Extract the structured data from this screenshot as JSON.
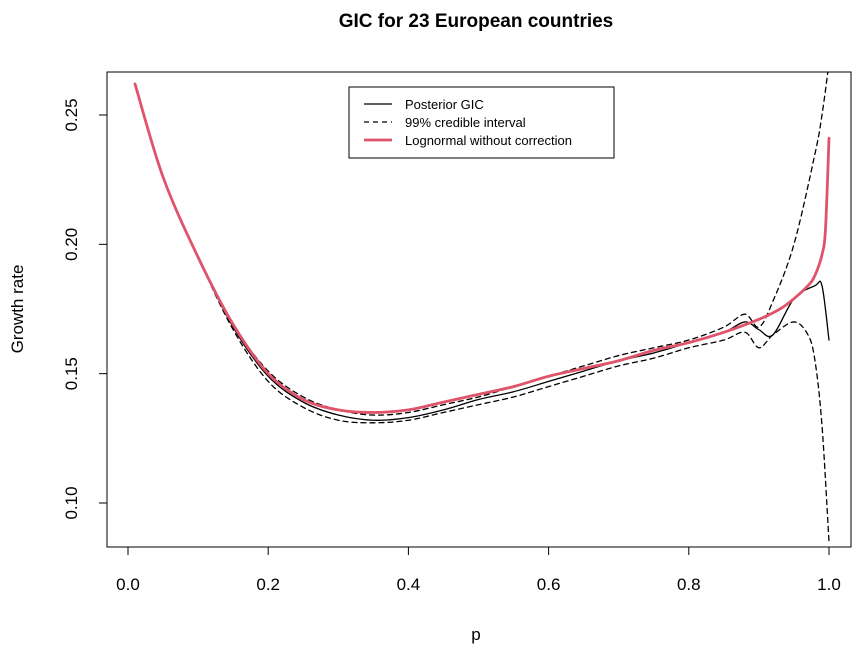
{
  "chart_data": {
    "type": "line",
    "title": "GIC for 23 European countries",
    "xlabel": "p",
    "ylabel": "Growth rate",
    "xlim": [
      0.0,
      1.0
    ],
    "ylim": [
      0.08,
      0.27
    ],
    "xticks": [
      0.0,
      0.2,
      0.4,
      0.6,
      0.8,
      1.0
    ],
    "xtick_labels": [
      "0.0",
      "0.2",
      "0.4",
      "0.6",
      "0.8",
      "1.0"
    ],
    "yticks": [
      0.1,
      0.15,
      0.2,
      0.25
    ],
    "ytick_labels": [
      "0.10",
      "0.15",
      "0.20",
      "0.25"
    ],
    "grid": false,
    "legend_position": "top-center",
    "legend": [
      {
        "label": "Posterior GIC",
        "style": "solid",
        "color": "#000000"
      },
      {
        "label": "99% credible interval",
        "style": "dashed",
        "color": "#000000"
      },
      {
        "label": "Lognormal without correction",
        "style": "solid-thick",
        "color": "#DF536B"
      }
    ],
    "series": [
      {
        "name": "Posterior GIC",
        "style": "solid",
        "color": "#000000",
        "x": [
          0.01,
          0.05,
          0.1,
          0.15,
          0.2,
          0.25,
          0.3,
          0.35,
          0.4,
          0.45,
          0.5,
          0.55,
          0.6,
          0.65,
          0.7,
          0.75,
          0.8,
          0.85,
          0.88,
          0.9,
          0.92,
          0.95,
          0.98,
          0.99,
          1.0
        ],
        "y": [
          0.262,
          0.226,
          0.195,
          0.168,
          0.149,
          0.139,
          0.134,
          0.132,
          0.133,
          0.136,
          0.14,
          0.143,
          0.147,
          0.151,
          0.155,
          0.158,
          0.162,
          0.166,
          0.17,
          0.167,
          0.165,
          0.179,
          0.184,
          0.184,
          0.163
        ]
      },
      {
        "name": "99% credible interval",
        "style": "dashed",
        "color": "#000000",
        "x": [
          0.01,
          0.05,
          0.1,
          0.15,
          0.2,
          0.25,
          0.3,
          0.35,
          0.4,
          0.45,
          0.5,
          0.55,
          0.6,
          0.65,
          0.7,
          0.75,
          0.8,
          0.85,
          0.88,
          0.9,
          0.92,
          0.95,
          0.98,
          0.99,
          1.0
        ],
        "y": [
          0.262,
          0.226,
          0.195,
          0.169,
          0.151,
          0.141,
          0.136,
          0.134,
          0.135,
          0.138,
          0.141,
          0.145,
          0.149,
          0.153,
          0.157,
          0.16,
          0.163,
          0.168,
          0.173,
          0.168,
          0.178,
          0.2,
          0.235,
          0.25,
          0.27
        ]
      },
      {
        "name": "99% credible interval",
        "style": "dashed",
        "color": "#000000",
        "x": [
          0.01,
          0.05,
          0.1,
          0.15,
          0.2,
          0.25,
          0.3,
          0.35,
          0.4,
          0.45,
          0.5,
          0.55,
          0.6,
          0.65,
          0.7,
          0.75,
          0.8,
          0.85,
          0.88,
          0.9,
          0.92,
          0.95,
          0.97,
          0.98,
          0.99,
          1.0
        ],
        "y": [
          0.262,
          0.226,
          0.195,
          0.167,
          0.147,
          0.137,
          0.132,
          0.131,
          0.132,
          0.135,
          0.138,
          0.141,
          0.145,
          0.149,
          0.153,
          0.156,
          0.16,
          0.163,
          0.166,
          0.16,
          0.165,
          0.17,
          0.165,
          0.155,
          0.13,
          0.085
        ]
      },
      {
        "name": "Lognormal without correction",
        "style": "solid-thick",
        "color": "#DF536B",
        "x": [
          0.01,
          0.05,
          0.1,
          0.15,
          0.2,
          0.25,
          0.3,
          0.35,
          0.4,
          0.45,
          0.5,
          0.55,
          0.6,
          0.65,
          0.7,
          0.75,
          0.8,
          0.85,
          0.9,
          0.93,
          0.95,
          0.97,
          0.98,
          0.99,
          0.995,
          1.0
        ],
        "y": [
          0.262,
          0.226,
          0.195,
          0.169,
          0.15,
          0.14,
          0.136,
          0.135,
          0.136,
          0.139,
          0.142,
          0.145,
          0.149,
          0.152,
          0.155,
          0.159,
          0.162,
          0.166,
          0.171,
          0.175,
          0.179,
          0.184,
          0.188,
          0.196,
          0.206,
          0.241
        ]
      }
    ]
  }
}
